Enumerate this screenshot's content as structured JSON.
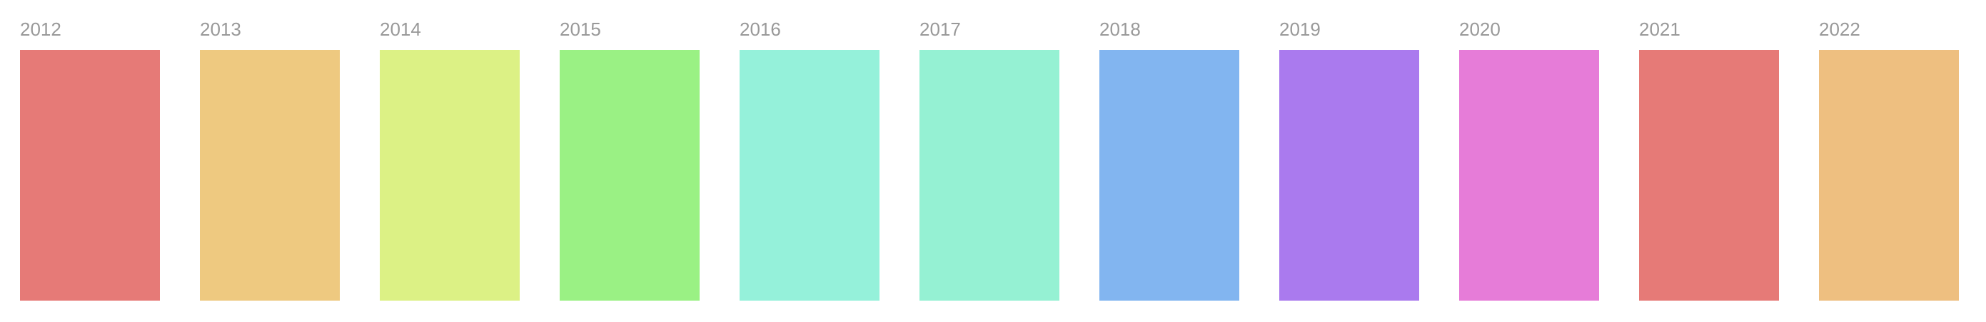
{
  "swatches": [
    {
      "year": "2012",
      "color": "#E67A77"
    },
    {
      "year": "2013",
      "color": "#EEC980"
    },
    {
      "year": "2014",
      "color": "#DCF185"
    },
    {
      "year": "2015",
      "color": "#9AF184"
    },
    {
      "year": "2016",
      "color": "#95F1DA"
    },
    {
      "year": "2017",
      "color": "#95F1D3"
    },
    {
      "year": "2018",
      "color": "#82B5F0"
    },
    {
      "year": "2019",
      "color": "#AA7AEE"
    },
    {
      "year": "2020",
      "color": "#E67CD8"
    },
    {
      "year": "2021",
      "color": "#E67A77"
    },
    {
      "year": "2022",
      "color": "#EEBF80"
    }
  ]
}
